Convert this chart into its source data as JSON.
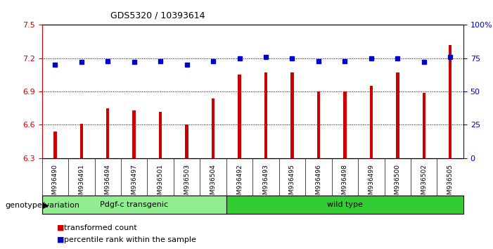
{
  "title": "GDS5320 / 10393614",
  "categories": [
    "GSM936490",
    "GSM936491",
    "GSM936494",
    "GSM936497",
    "GSM936501",
    "GSM936503",
    "GSM936504",
    "GSM936492",
    "GSM936493",
    "GSM936495",
    "GSM936496",
    "GSM936498",
    "GSM936499",
    "GSM936500",
    "GSM936502",
    "GSM936505"
  ],
  "bar_values": [
    6.54,
    6.61,
    6.75,
    6.73,
    6.72,
    6.6,
    6.84,
    7.05,
    7.07,
    7.07,
    6.9,
    6.9,
    6.95,
    7.07,
    6.89,
    7.32
  ],
  "dot_values": [
    70,
    72,
    73,
    72,
    73,
    70,
    73,
    75,
    76,
    75,
    73,
    73,
    75,
    75,
    72,
    76
  ],
  "bar_color": "#cc0000",
  "dot_color": "#0000cc",
  "ylim_left": [
    6.3,
    7.5
  ],
  "ylim_right": [
    0,
    100
  ],
  "yticks_left": [
    6.3,
    6.6,
    6.9,
    7.2,
    7.5
  ],
  "yticks_right": [
    0,
    25,
    50,
    75,
    100
  ],
  "ytick_labels_right": [
    "0",
    "25",
    "50",
    "75",
    "100%"
  ],
  "group1_label": "Pdgf-c transgenic",
  "group2_label": "wild type",
  "group1_count": 7,
  "group2_count": 9,
  "xlabel_left": "genotype/variation",
  "legend1": "transformed count",
  "legend2": "percentile rank within the sample",
  "bg_color": "#ffffff",
  "plot_bg": "#ffffff",
  "xtick_bg": "#d3d3d3",
  "bar_width": 0.12,
  "grid_dotted_at": [
    6.6,
    6.9,
    7.2
  ],
  "group1_color": "#90ee90",
  "group2_color": "#32cd32"
}
